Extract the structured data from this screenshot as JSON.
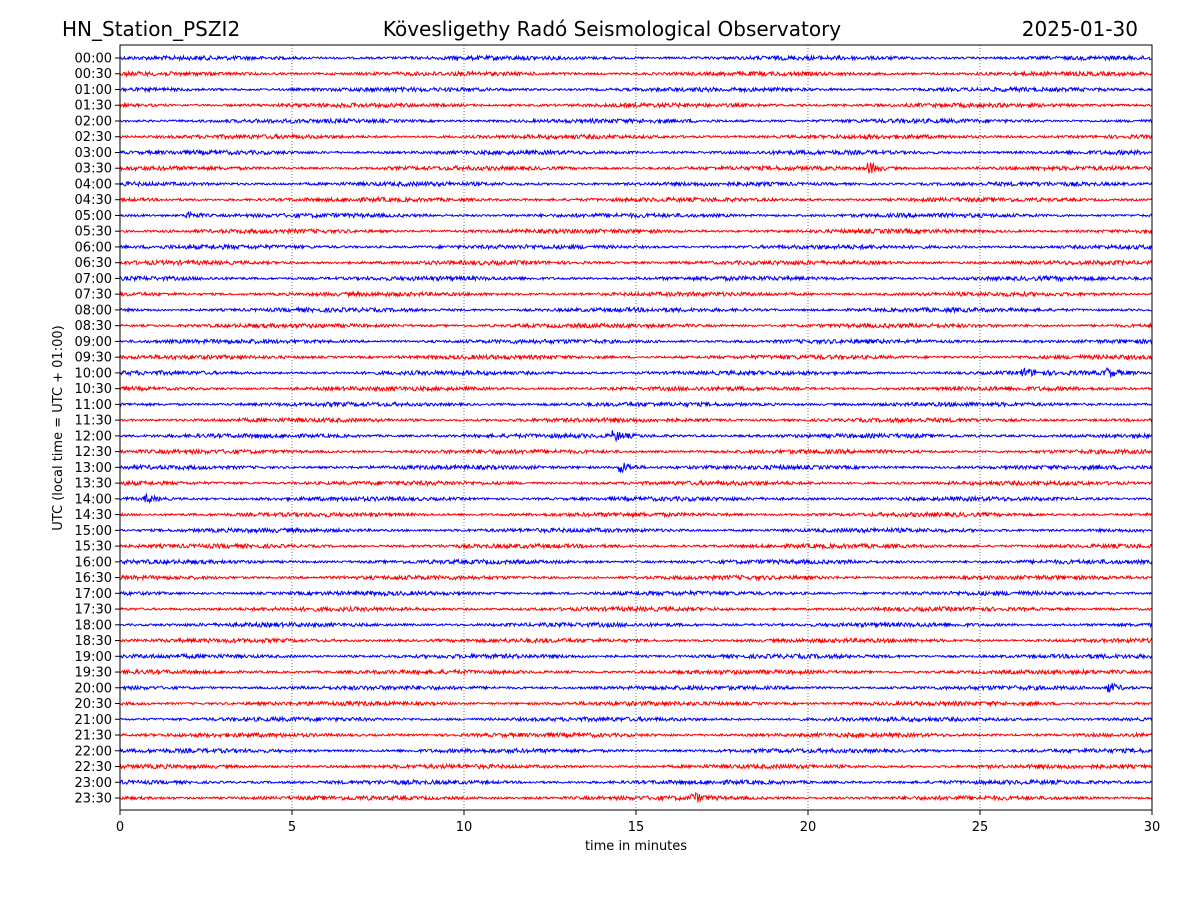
{
  "header": {
    "station": "HN_Station_PSZI2",
    "observatory": "Kövesligethy Radó Seismological Observatory",
    "date": "2025-01-30"
  },
  "colors": {
    "even_row": "#0000ff",
    "odd_row": "#ff0000"
  },
  "chart_data": {
    "type": "line",
    "title": "Kövesligethy Radó Seismological Observatory",
    "xlabel": "time in minutes",
    "ylabel": "UTC (local time = UTC + 01:00)",
    "xlim": [
      0,
      30
    ],
    "x_ticks": [
      "0",
      "5",
      "10",
      "15",
      "20",
      "25",
      "30"
    ],
    "grid": "vertical dotted at every 5 minutes",
    "rows": [
      "00:00",
      "00:30",
      "01:00",
      "01:30",
      "02:00",
      "02:30",
      "03:00",
      "03:30",
      "04:00",
      "04:30",
      "05:00",
      "05:30",
      "06:00",
      "06:30",
      "07:00",
      "07:30",
      "08:00",
      "08:30",
      "09:00",
      "09:30",
      "10:00",
      "10:30",
      "11:00",
      "11:30",
      "12:00",
      "12:30",
      "13:00",
      "13:30",
      "14:00",
      "14:30",
      "15:00",
      "15:30",
      "16:00",
      "16:30",
      "17:00",
      "17:30",
      "18:00",
      "18:30",
      "19:00",
      "19:30",
      "20:00",
      "20:30",
      "21:00",
      "21:30",
      "22:00",
      "22:30",
      "23:00",
      "23:30"
    ],
    "notable_events": [
      {
        "row": "03:30",
        "minute": 21.8,
        "amplitude": 2.2
      },
      {
        "row": "05:00",
        "minute": 2.0,
        "amplitude": 1.6
      },
      {
        "row": "10:00",
        "minute": 28.7,
        "amplitude": 1.8
      },
      {
        "row": "10:00",
        "minute": 26.3,
        "amplitude": 1.5
      },
      {
        "row": "12:00",
        "minute": 14.4,
        "amplitude": 1.8
      },
      {
        "row": "13:00",
        "minute": 14.6,
        "amplitude": 2.4
      },
      {
        "row": "14:00",
        "minute": 0.8,
        "amplitude": 1.6
      },
      {
        "row": "20:00",
        "minute": 28.8,
        "amplitude": 2.0
      },
      {
        "row": "23:30",
        "minute": 16.7,
        "amplitude": 1.8
      }
    ]
  }
}
